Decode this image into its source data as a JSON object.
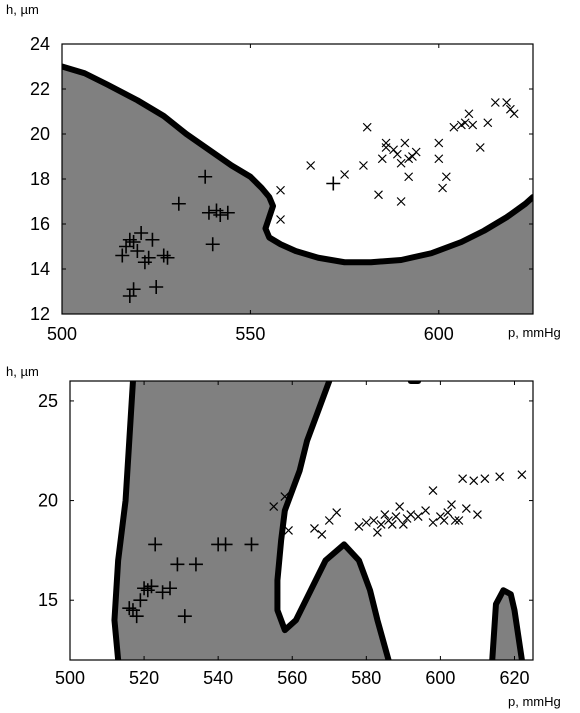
{
  "chart_data": [
    {
      "type": "scatter",
      "ylabel": "h, µm",
      "xlabel": "p, mmHg",
      "xlim": [
        500,
        625
      ],
      "ylim": [
        12,
        24
      ],
      "xticks": [
        500,
        550,
        600
      ],
      "yticks": [
        12,
        14,
        16,
        18,
        20,
        22,
        24
      ],
      "region_color": "#808080",
      "grid": false,
      "boundary": [
        [
          500,
          23
        ],
        [
          506,
          22.7
        ],
        [
          512,
          22.2
        ],
        [
          520,
          21.5
        ],
        [
          527,
          20.8
        ],
        [
          533,
          20
        ],
        [
          539,
          19.3
        ],
        [
          545,
          18.6
        ],
        [
          550,
          18.1
        ],
        [
          553,
          17.6
        ],
        [
          555,
          17.2
        ],
        [
          556,
          16.8
        ],
        [
          555,
          16.3
        ],
        [
          554,
          15.8
        ],
        [
          555,
          15.4
        ],
        [
          558,
          15.1
        ],
        [
          562,
          14.8
        ],
        [
          568,
          14.5
        ],
        [
          575,
          14.3
        ],
        [
          582,
          14.3
        ],
        [
          590,
          14.4
        ],
        [
          598,
          14.7
        ],
        [
          606,
          15.2
        ],
        [
          612,
          15.7
        ],
        [
          618,
          16.3
        ],
        [
          623,
          16.9
        ],
        [
          625,
          17.2
        ]
      ],
      "series": [
        {
          "marker": "plus",
          "points": [
            [
              516,
              14.6
            ],
            [
              517,
              15
            ],
            [
              518,
              15.3
            ],
            [
              519,
              15.2
            ],
            [
              520,
              14.8
            ],
            [
              521,
              15.6
            ],
            [
              522,
              14.3
            ],
            [
              523,
              14.5
            ],
            [
              524,
              15.3
            ],
            [
              525,
              13.2
            ],
            [
              518,
              12.8
            ],
            [
              519,
              13.1
            ],
            [
              527,
              14.6
            ],
            [
              528,
              14.5
            ],
            [
              531,
              16.9
            ],
            [
              538,
              18.1
            ],
            [
              539,
              16.5
            ],
            [
              541,
              16.6
            ],
            [
              542,
              16.4
            ],
            [
              544,
              16.5
            ],
            [
              540,
              15.1
            ],
            [
              572,
              17.8
            ]
          ]
        },
        {
          "marker": "cross",
          "points": [
            [
              558,
              17.5
            ],
            [
              558,
              16.2
            ],
            [
              566,
              18.6
            ],
            [
              575,
              18.2
            ],
            [
              580,
              18.6
            ],
            [
              581,
              20.3
            ],
            [
              585,
              18.9
            ],
            [
              586,
              19.4
            ],
            [
              588,
              19.3
            ],
            [
              589,
              19.1
            ],
            [
              590,
              18.7
            ],
            [
              591,
              19.6
            ],
            [
              592,
              18.9
            ],
            [
              592,
              18.1
            ],
            [
              593,
              19
            ],
            [
              594,
              19.2
            ],
            [
              590,
              17
            ],
            [
              584,
              17.3
            ],
            [
              586,
              19.6
            ],
            [
              600,
              19.6
            ],
            [
              600,
              18.9
            ],
            [
              601,
              17.6
            ],
            [
              602,
              18.1
            ],
            [
              604,
              20.3
            ],
            [
              606,
              20.4
            ],
            [
              607,
              20.5
            ],
            [
              608,
              20.9
            ],
            [
              609,
              20.4
            ],
            [
              611,
              19.4
            ],
            [
              613,
              20.5
            ],
            [
              615,
              21.4
            ],
            [
              618,
              21.4
            ],
            [
              619,
              21.1
            ],
            [
              620,
              20.9
            ]
          ]
        }
      ]
    },
    {
      "type": "scatter",
      "ylabel": "h, µm",
      "xlabel": "p, mmHg",
      "xlim": [
        500,
        625
      ],
      "ylim": [
        12,
        26
      ],
      "xticks": [
        500,
        520,
        540,
        560,
        580,
        600,
        620
      ],
      "yticks": [
        15,
        20,
        25
      ],
      "region_color": "#808080",
      "grid": false,
      "regions": [
        [
          [
            517,
            26
          ],
          [
            570,
            26
          ],
          [
            564,
            23
          ],
          [
            560,
            20.5
          ],
          [
            557,
            18
          ],
          [
            556,
            16
          ],
          [
            556,
            14.5
          ],
          [
            558,
            13.5
          ],
          [
            561,
            14
          ],
          [
            565,
            15.5
          ],
          [
            569,
            17
          ],
          [
            574,
            17.8
          ],
          [
            578,
            17
          ],
          [
            581,
            15.5
          ],
          [
            583,
            14
          ],
          [
            586,
            12
          ],
          [
            513,
            12
          ],
          [
            512,
            14
          ],
          [
            513,
            17
          ],
          [
            515,
            20
          ],
          [
            516,
            23
          ]
        ],
        [
          [
            614,
            12
          ],
          [
            615,
            14.8
          ],
          [
            617,
            15.5
          ],
          [
            619,
            15.3
          ],
          [
            620,
            14.5
          ],
          [
            622,
            12
          ]
        ]
      ],
      "boundaries": [
        [
          [
            517,
            26
          ],
          [
            516,
            23
          ],
          [
            515,
            20
          ],
          [
            513,
            17
          ],
          [
            512,
            14
          ],
          [
            513,
            12
          ]
        ],
        [
          [
            570,
            26
          ],
          [
            567,
            24.5
          ],
          [
            564,
            23
          ],
          [
            562,
            21.5
          ],
          [
            560,
            20.5
          ],
          [
            558,
            19.5
          ],
          [
            557,
            18
          ],
          [
            556,
            16
          ],
          [
            556,
            14.5
          ],
          [
            558,
            13.5
          ],
          [
            561,
            14
          ],
          [
            565,
            15.5
          ],
          [
            569,
            17
          ],
          [
            574,
            17.8
          ],
          [
            578,
            17
          ],
          [
            581,
            15.5
          ],
          [
            583,
            14
          ],
          [
            586,
            12
          ]
        ],
        [
          [
            614,
            12
          ],
          [
            615,
            14.8
          ],
          [
            617,
            15.5
          ],
          [
            619,
            15.3
          ],
          [
            620,
            14.5
          ],
          [
            622,
            12
          ]
        ],
        [
          [
            592,
            26
          ],
          [
            594,
            26
          ]
        ]
      ],
      "series": [
        {
          "marker": "plus",
          "points": [
            [
              516,
              14.6
            ],
            [
              517,
              14.5
            ],
            [
              518,
              14.2
            ],
            [
              519,
              15
            ],
            [
              520,
              15.6
            ],
            [
              521,
              15.5
            ],
            [
              522,
              15.7
            ],
            [
              523,
              17.8
            ],
            [
              525,
              15.4
            ],
            [
              527,
              15.6
            ],
            [
              529,
              16.8
            ],
            [
              531,
              14.2
            ],
            [
              534,
              16.8
            ],
            [
              540,
              17.8
            ],
            [
              542,
              17.8
            ],
            [
              549,
              17.8
            ]
          ]
        },
        {
          "marker": "cross",
          "points": [
            [
              555,
              19.7
            ],
            [
              558,
              20.2
            ],
            [
              559,
              18.5
            ],
            [
              566,
              18.6
            ],
            [
              568,
              18.3
            ],
            [
              570,
              19
            ],
            [
              572,
              19.4
            ],
            [
              578,
              18.7
            ],
            [
              580,
              18.9
            ],
            [
              582,
              19
            ],
            [
              583,
              18.4
            ],
            [
              584,
              18.8
            ],
            [
              585,
              19.3
            ],
            [
              586,
              19
            ],
            [
              587,
              18.8
            ],
            [
              588,
              19.2
            ],
            [
              589,
              19.7
            ],
            [
              590,
              18.8
            ],
            [
              591,
              19.1
            ],
            [
              592,
              19.3
            ],
            [
              594,
              19.2
            ],
            [
              596,
              19.5
            ],
            [
              598,
              18.9
            ],
            [
              600,
              19.2
            ],
            [
              601,
              19
            ],
            [
              602,
              19.4
            ],
            [
              603,
              19.8
            ],
            [
              604,
              19
            ],
            [
              605,
              19
            ],
            [
              607,
              19.6
            ],
            [
              610,
              19.3
            ],
            [
              606,
              21.1
            ],
            [
              609,
              21
            ],
            [
              612,
              21.1
            ],
            [
              616,
              21.2
            ],
            [
              622,
              21.3
            ],
            [
              598,
              20.5
            ]
          ]
        }
      ]
    }
  ]
}
